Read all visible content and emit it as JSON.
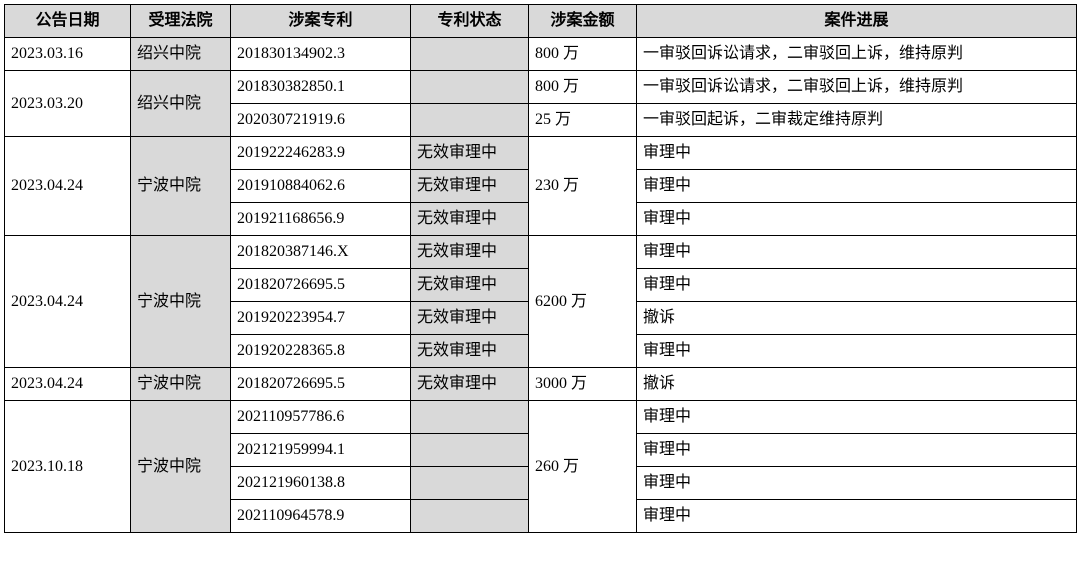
{
  "headers": {
    "date": "公告日期",
    "court": "受理法院",
    "patent": "涉案专利",
    "status": "专利状态",
    "amount": "涉案金额",
    "progress": "案件进展"
  },
  "rows": [
    {
      "date": "2023.03.16",
      "court": "绍兴中院",
      "patent": "201830134902.3",
      "status": "",
      "amount": "800 万",
      "progress": "一审驳回诉讼请求，二审驳回上诉，维持原判"
    },
    {
      "date": "2023.03.20",
      "court": "绍兴中院",
      "sub": [
        {
          "patent": "201830382850.1",
          "status": "",
          "amount": "800 万",
          "progress": "一审驳回诉讼请求，二审驳回上诉，维持原判"
        },
        {
          "patent": "202030721919.6",
          "status": "",
          "amount": "25 万",
          "progress": "一审驳回起诉，二审裁定维持原判"
        }
      ]
    },
    {
      "date": "2023.04.24",
      "court": "宁波中院",
      "amount": "230 万",
      "sub": [
        {
          "patent": "201922246283.9",
          "status": "无效审理中",
          "progress": "审理中"
        },
        {
          "patent": "201910884062.6",
          "status": "无效审理中",
          "progress": "审理中"
        },
        {
          "patent": "201921168656.9",
          "status": "无效审理中",
          "progress": "审理中"
        }
      ]
    },
    {
      "date": "2023.04.24",
      "court": "宁波中院",
      "amount": "6200 万",
      "sub": [
        {
          "patent": "201820387146.X",
          "status": "无效审理中",
          "progress": "审理中"
        },
        {
          "patent": "201820726695.5",
          "status": "无效审理中",
          "progress": "审理中"
        },
        {
          "patent": "201920223954.7",
          "status": "无效审理中",
          "progress": "撤诉"
        },
        {
          "patent": "201920228365.8",
          "status": "无效审理中",
          "progress": "审理中"
        }
      ]
    },
    {
      "date": "2023.04.24",
      "court": "宁波中院",
      "patent": "201820726695.5",
      "status": "无效审理中",
      "amount": "3000 万",
      "progress": "撤诉"
    },
    {
      "date": "2023.10.18",
      "court": "宁波中院",
      "amount": "260 万",
      "sub": [
        {
          "patent": "202110957786.6",
          "status": "",
          "progress": "审理中"
        },
        {
          "patent": "202121959994.1",
          "status": "",
          "progress": "审理中"
        },
        {
          "patent": "202121960138.8",
          "status": "",
          "progress": "审理中"
        },
        {
          "patent": "202110964578.9",
          "status": "",
          "progress": "审理中"
        }
      ]
    }
  ],
  "styling": {
    "header_bg": "#d9d9d9",
    "shaded_bg": "#d9d9d9",
    "border_color": "#000000",
    "font_family": "SimSun",
    "font_size": 16,
    "column_widths": {
      "date": 126,
      "court": 100,
      "patent": 180,
      "status": 118,
      "amount": 108,
      "progress": 440
    }
  }
}
